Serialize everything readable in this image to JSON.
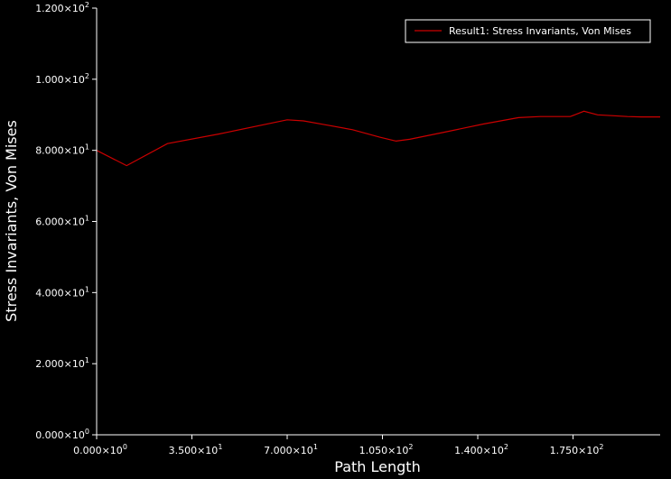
{
  "chart_data": {
    "type": "line",
    "title": "",
    "xlabel": "Path Length",
    "ylabel": "Stress Invariants, Von Mises",
    "xlim": [
      0,
      207
    ],
    "ylim": [
      0,
      120
    ],
    "x_ticks": [
      {
        "value": 0,
        "label": "0.000×10",
        "exp": "0"
      },
      {
        "value": 35,
        "label": "3.500×10",
        "exp": "1"
      },
      {
        "value": 70,
        "label": "7.000×10",
        "exp": "1"
      },
      {
        "value": 105,
        "label": "1.050×10",
        "exp": "2"
      },
      {
        "value": 140,
        "label": "1.400×10",
        "exp": "2"
      },
      {
        "value": 175,
        "label": "1.750×10",
        "exp": "2"
      }
    ],
    "y_ticks": [
      {
        "value": 0,
        "label": "0.000×10",
        "exp": "0"
      },
      {
        "value": 20,
        "label": "2.000×10",
        "exp": "1"
      },
      {
        "value": 40,
        "label": "4.000×10",
        "exp": "1"
      },
      {
        "value": 60,
        "label": "6.000×10",
        "exp": "1"
      },
      {
        "value": 80,
        "label": "8.000×10",
        "exp": "1"
      },
      {
        "value": 100,
        "label": "1.000×10",
        "exp": "2"
      },
      {
        "value": 120,
        "label": "1.200×10",
        "exp": "2"
      }
    ],
    "legend": "top-right",
    "grid": false,
    "series": [
      {
        "name": "Result1: Stress Invariants, Von Mises",
        "color": "#cc0000",
        "x": [
          0,
          11,
          26,
          45,
          70,
          76,
          84,
          94,
          104,
          110,
          115,
          127,
          142,
          155,
          163,
          174,
          179,
          184,
          195,
          200,
          207
        ],
        "y": [
          80,
          75.7,
          81.9,
          84.6,
          88.6,
          88.3,
          87.2,
          85.8,
          83.7,
          82.6,
          83.1,
          85.0,
          87.4,
          89.2,
          89.5,
          89.5,
          91.0,
          90.0,
          89.5,
          89.4,
          89.4
        ]
      }
    ]
  }
}
